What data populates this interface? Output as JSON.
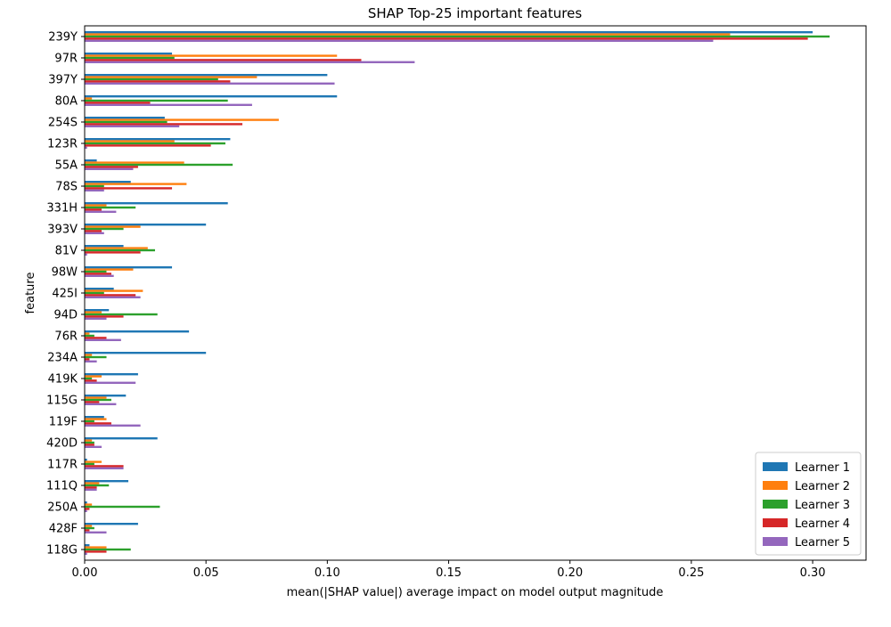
{
  "chart_data": {
    "type": "bar",
    "orientation": "horizontal",
    "title": "SHAP Top-25 important features",
    "xlabel": "mean(|SHAP value|) average impact on model output magnitude",
    "ylabel": "feature",
    "xlim": [
      0,
      0.322
    ],
    "xticks": [
      0.0,
      0.05,
      0.1,
      0.15,
      0.2,
      0.25,
      0.3
    ],
    "xtick_labels": [
      "0.00",
      "0.05",
      "0.10",
      "0.15",
      "0.20",
      "0.25",
      "0.30"
    ],
    "grid": false,
    "legend_position": "bottom-right",
    "categories": [
      "239Y",
      "97R",
      "397Y",
      "80A",
      "254S",
      "123R",
      "55A",
      "78S",
      "331H",
      "393V",
      "81V",
      "98W",
      "425I",
      "94D",
      "76R",
      "234A",
      "419K",
      "115G",
      "119F",
      "420D",
      "117R",
      "111Q",
      "250A",
      "428F",
      "118G"
    ],
    "series": [
      {
        "name": "Learner 1",
        "color": "#1f77b4",
        "values": [
          0.3,
          0.036,
          0.1,
          0.104,
          0.033,
          0.06,
          0.005,
          0.019,
          0.059,
          0.05,
          0.016,
          0.036,
          0.012,
          0.01,
          0.043,
          0.05,
          0.022,
          0.017,
          0.008,
          0.03,
          0.001,
          0.018,
          0.001,
          0.022,
          0.002
        ]
      },
      {
        "name": "Learner 2",
        "color": "#ff7f0e",
        "values": [
          0.266,
          0.104,
          0.071,
          0.003,
          0.08,
          0.037,
          0.041,
          0.042,
          0.009,
          0.023,
          0.026,
          0.02,
          0.024,
          0.007,
          0.002,
          0.003,
          0.007,
          0.009,
          0.009,
          0.003,
          0.007,
          0.006,
          0.003,
          0.003,
          0.009
        ]
      },
      {
        "name": "Learner 3",
        "color": "#2ca02c",
        "values": [
          0.307,
          0.037,
          0.055,
          0.059,
          0.034,
          0.058,
          0.061,
          0.008,
          0.021,
          0.016,
          0.029,
          0.009,
          0.008,
          0.03,
          0.004,
          0.009,
          0.003,
          0.011,
          0.004,
          0.004,
          0.004,
          0.01,
          0.031,
          0.004,
          0.019
        ]
      },
      {
        "name": "Learner 4",
        "color": "#d62728",
        "values": [
          0.298,
          0.114,
          0.06,
          0.027,
          0.065,
          0.052,
          0.022,
          0.036,
          0.007,
          0.007,
          0.023,
          0.011,
          0.021,
          0.016,
          0.009,
          0.002,
          0.005,
          0.006,
          0.011,
          0.004,
          0.016,
          0.005,
          0.002,
          0.002,
          0.009
        ]
      },
      {
        "name": "Learner 5",
        "color": "#9467bd",
        "values": [
          0.259,
          0.136,
          0.103,
          0.069,
          0.039,
          0.001,
          0.02,
          0.008,
          0.013,
          0.008,
          0.001,
          0.012,
          0.023,
          0.009,
          0.015,
          0.005,
          0.021,
          0.013,
          0.023,
          0.007,
          0.016,
          0.005,
          0.001,
          0.009,
          0.001
        ]
      }
    ]
  }
}
